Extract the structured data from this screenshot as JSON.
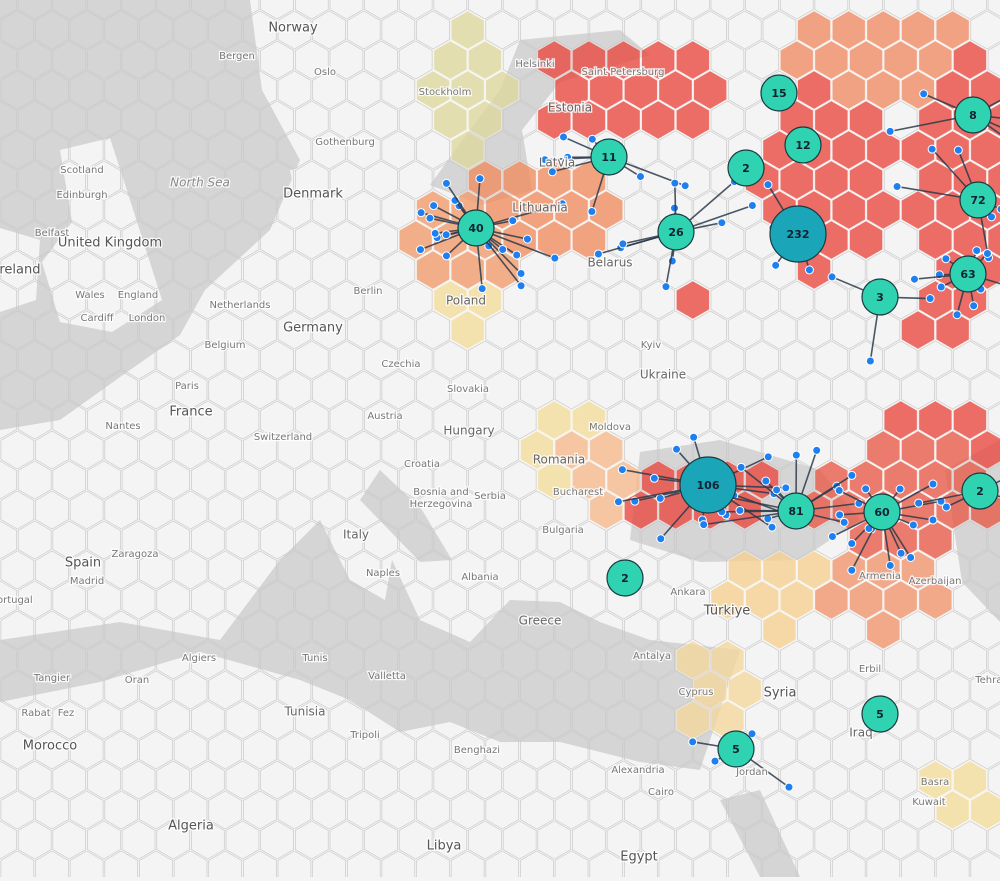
{
  "places": [
    "Norway",
    "Bergen",
    "Oslo",
    "Stockholm",
    "Helsinki",
    "Saint Petersburg",
    "Estonia",
    "Gothenburg",
    "Latvia",
    "Denmark",
    "Lithuania",
    "North Sea",
    "United Kingdom",
    "Scotland",
    "Edinburgh",
    "Belfast",
    "Ireland",
    "Wales",
    "England",
    "Cardiff",
    "London",
    "Netherlands",
    "Berlin",
    "Poland",
    "Belarus",
    "Germany",
    "Belgium",
    "Czechia",
    "Kyiv",
    "Ukraine",
    "Paris",
    "Slovakia",
    "France",
    "Austria",
    "Nantes",
    "Switzerland",
    "Hungary",
    "Moldova",
    "Romania",
    "Croatia",
    "Bucharest",
    "Bosnia and",
    "Herzegovina",
    "Serbia",
    "Bulgaria",
    "Italy",
    "Spain",
    "Zaragoza",
    "Madrid",
    "Naples",
    "Albania",
    "Ankara",
    "Türkiye",
    "Portugal",
    "Greece",
    "Antalya",
    "Tunis",
    "Algiers",
    "Erbil",
    "Tangier",
    "Oran",
    "Valletta",
    "Cyprus",
    "Syria",
    "Tehran",
    "Rabat",
    "Fez",
    "Tunisia",
    "Iraq",
    "Tripoli",
    "Benghazi",
    "Morocco",
    "Jordan",
    "Alexandria",
    "Basra",
    "Cairo",
    "Kuwait",
    "Algeria",
    "Libya",
    "Egypt",
    "Armenia",
    "Azerbaijan"
  ],
  "clusters": [
    15,
    12,
    2,
    11,
    40,
    26,
    232,
    3,
    8,
    72,
    63,
    106,
    81,
    60,
    2,
    2,
    5,
    5
  ]
}
